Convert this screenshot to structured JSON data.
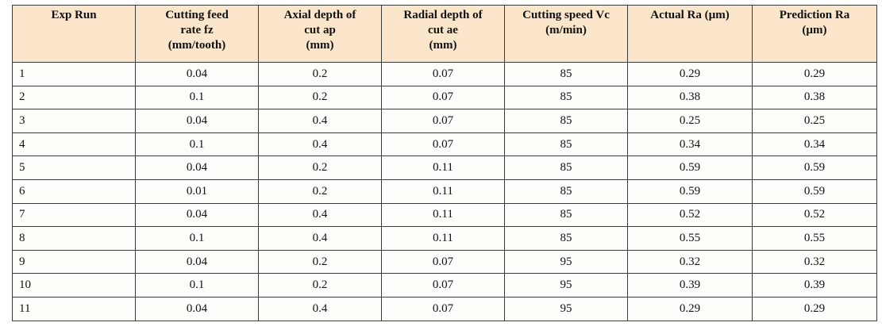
{
  "table": {
    "columns": [
      {
        "lines": [
          "Exp Run"
        ]
      },
      {
        "lines": [
          "Cutting feed",
          "rate fz",
          "(mm/tooth)"
        ]
      },
      {
        "lines": [
          "Axial depth of",
          "cut ap",
          "(mm)"
        ]
      },
      {
        "lines": [
          "Radial depth of",
          "cut ae",
          "(mm)"
        ]
      },
      {
        "lines": [
          "Cutting speed Vc",
          "(m/min)"
        ]
      },
      {
        "lines": [
          "Actual Ra (µm)"
        ]
      },
      {
        "lines": [
          "Prediction Ra",
          "(µm)"
        ]
      }
    ],
    "rows": [
      [
        "1",
        "0.04",
        "0.2",
        "0.07",
        "85",
        "0.29",
        "0.29"
      ],
      [
        "2",
        "0.1",
        "0.2",
        "0.07",
        "85",
        "0.38",
        "0.38"
      ],
      [
        "3",
        "0.04",
        "0.4",
        "0.07",
        "85",
        "0.25",
        "0.25"
      ],
      [
        "4",
        "0.1",
        "0.4",
        "0.07",
        "85",
        "0.34",
        "0.34"
      ],
      [
        "5",
        "0.04",
        "0.2",
        "0.11",
        "85",
        "0.59",
        "0.59"
      ],
      [
        "6",
        "0.01",
        "0.2",
        "0.11",
        "85",
        "0.59",
        "0.59"
      ],
      [
        "7",
        "0.04",
        "0.4",
        "0.11",
        "85",
        "0.52",
        "0.52"
      ],
      [
        "8",
        "0.1",
        "0.4",
        "0.11",
        "85",
        "0.55",
        "0.55"
      ],
      [
        "9",
        "0.04",
        "0.2",
        "0.07",
        "95",
        "0.32",
        "0.32"
      ],
      [
        "10",
        "0.1",
        "0.2",
        "0.07",
        "95",
        "0.39",
        "0.39"
      ],
      [
        "11",
        "0.04",
        "0.4",
        "0.07",
        "95",
        "0.29",
        "0.29"
      ]
    ]
  },
  "colors": {
    "header_bg": "#fbe6cc",
    "row_bg": "#fffdf9",
    "border": "#3a3a3a"
  }
}
